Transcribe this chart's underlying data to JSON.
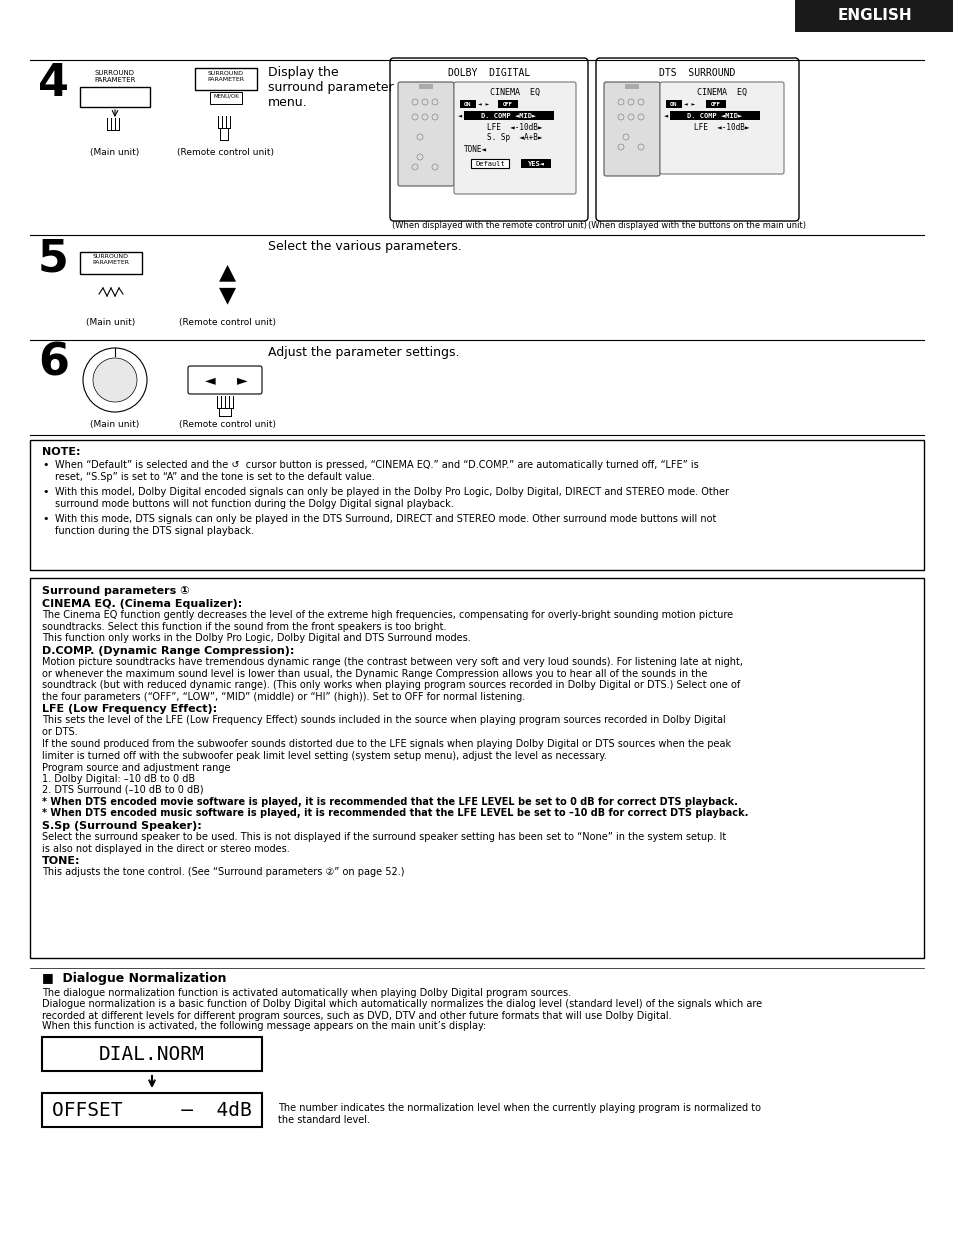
{
  "bg_color": "#ffffff",
  "header_bg": "#1a1a1a",
  "header_text": "ENGLISH",
  "note_title": "NOTE:",
  "note_bullets": [
    "When “Default” is selected and the ↺  cursor button is pressed, “CINEMA EQ.” and “D.COMP.” are automatically turned off, “LFE” is\nreset, “S.Sp” is set to “A” and the tone is set to the default value.",
    "With this model, Dolby Digital encoded signals can only be played in the Dolby Pro Logic, Dolby Digital, DIRECT and STEREO mode. Other\nsurround mode buttons will not function during the Dolgy Digital signal playback.",
    "With this mode, DTS signals can only be played in the DTS Surround, DIRECT and STEREO mode. Other surround mode buttons will not\nfunction during the DTS signal playback."
  ],
  "surround_title": "Surround parameters ①",
  "cinema_eq_title": "CINEMA EQ. (Cinema Equalizer):",
  "cinema_eq_text": "The Cinema EQ function gently decreases the level of the extreme high frequencies, compensating for overly-bright sounding motion picture\nsoundtracks. Select this function if the sound from the front speakers is too bright.\nThis function only works in the Dolby Pro Logic, Dolby Digital and DTS Surround modes.",
  "dcomp_title": "D.COMP. (Dynamic Range Compression):",
  "dcomp_text": "Motion picture soundtracks have tremendous dynamic range (the contrast between very soft and very loud sounds). For listening late at night,\nor whenever the maximum sound level is lower than usual, the Dynamic Range Compression allows you to hear all of the sounds in the\nsoundtrack (but with reduced dynamic range). (This only works when playing program sources recorded in Dolby Digital or DTS.) Select one of\nthe four parameters (“OFF”, “LOW”, “MID” (middle) or “HI” (high)). Set to OFF for normal listening.",
  "lfe_title": "LFE (Low Frequency Effect):",
  "lfe_text1": "This sets the level of the LFE (Low Frequency Effect) sounds included in the source when playing program sources recorded in Dolby Digital\nor DTS.",
  "lfe_text2": "If the sound produced from the subwoofer sounds distorted due to the LFE signals when playing Dolby Digital or DTS sources when the peak\nlimiter is turned off with the subwoofer peak limit level setting (system setup menu), adjust the level as necessary.",
  "lfe_text3a": "Program source and adjustment range",
  "lfe_text3b": "1. Dolby Digital: –10 dB to 0 dB",
  "lfe_text3c": "2. DTS Surround (–10 dB to 0 dB)",
  "lfe_bold1": "* When DTS encoded movie software is played, it is recommended that the LFE LEVEL be set to 0 dB for correct DTS playback.",
  "lfe_bold2": "* When DTS encoded music software is played, it is recommended that the LFE LEVEL be set to –10 dB for correct DTS playback.",
  "ssp_title": "S.Sp (Surround Speaker):",
  "ssp_text": "Select the surround speaker to be used. This is not displayed if the surround speaker setting has been set to “None” in the system setup. It\nis also not displayed in the direct or stereo modes.",
  "tone_title": "TONE:",
  "tone_text": "This adjusts the tone control. (See “Surround parameters ②” on page 52.)",
  "dialogue_title": "■  Dialogue Normalization",
  "dialogue_text1": "The dialogue normalization function is activated automatically when playing Dolby Digital program sources.",
  "dialogue_text2": "Dialogue normalization is a basic function of Dolby Digital which automatically normalizes the dialog level (standard level) of the signals which are\nrecorded at different levels for different program sources, such as DVD, DTV and other future formats that will use Dolby Digital.",
  "dialogue_text3": "When this function is activated, the following message appears on the main unit’s display:",
  "dialnorm_display": "DIAL.NORM",
  "offset_display": "OFFSET     —  4dB",
  "offset_note": "The number indicates the normalization level when the currently playing program is normalized to\nthe standard level."
}
